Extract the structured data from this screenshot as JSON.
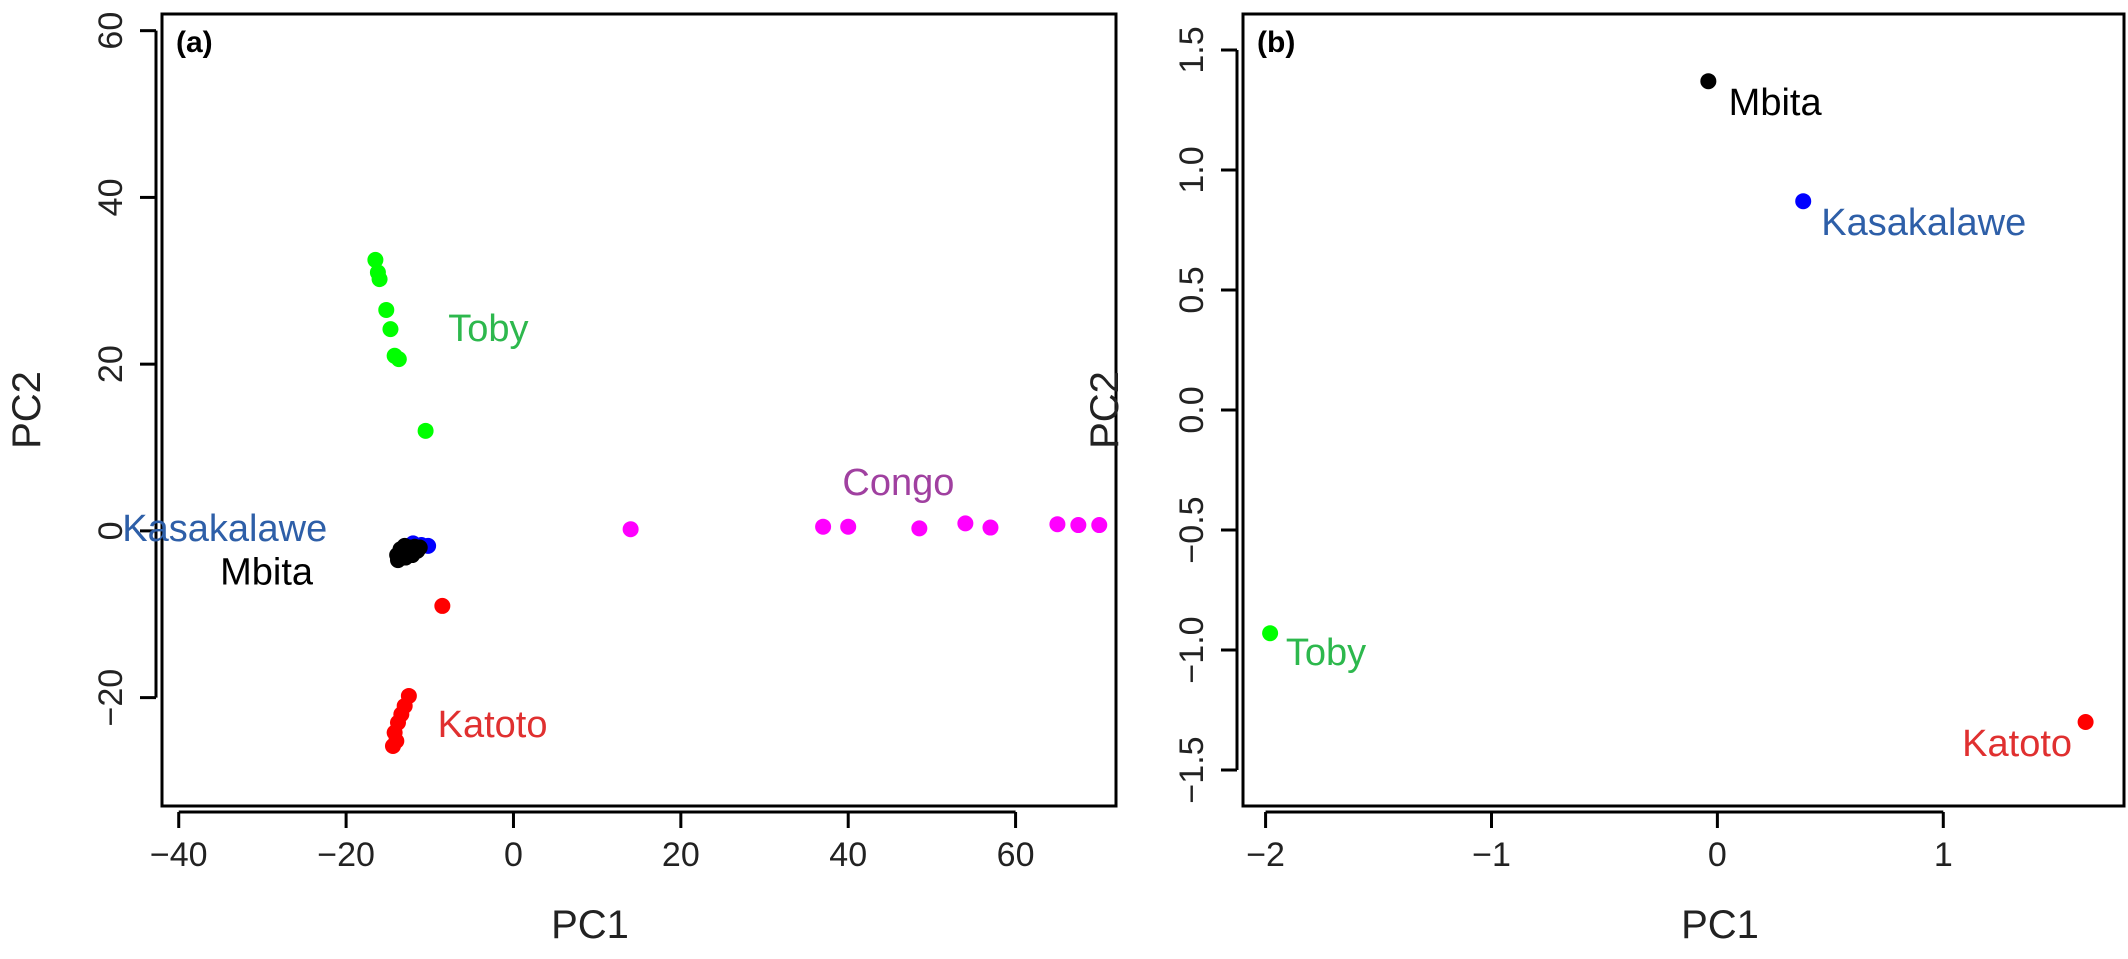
{
  "chart_data": [
    {
      "type": "scatter",
      "panel": "(a)",
      "xlabel": "PC1",
      "ylabel": "PC2",
      "xlim": [
        -42,
        72
      ],
      "ylim": [
        -33,
        62
      ],
      "xticks": [
        -40,
        -20,
        0,
        20,
        40,
        60
      ],
      "yticks": [
        -20,
        0,
        20,
        40,
        60
      ],
      "xtick_labels": [
        "−40",
        "−20",
        "0",
        "20",
        "40",
        "60"
      ],
      "ytick_labels": [
        "−20",
        "0",
        "20",
        "40",
        "60"
      ],
      "grid": false,
      "series": [
        {
          "name": "Toby",
          "color": "#00ff00",
          "label_color": "#2db84d",
          "label_at": [
            -3,
            24
          ],
          "label_anchor": "middle",
          "points": [
            [
              -16.5,
              32.5
            ],
            [
              -16.2,
              31
            ],
            [
              -16.0,
              30.2
            ],
            [
              -15.2,
              26.5
            ],
            [
              -14.7,
              24.2
            ],
            [
              -14.2,
              21
            ],
            [
              -13.7,
              20.6
            ],
            [
              -10.5,
              12
            ]
          ]
        },
        {
          "name": "Congo",
          "color": "#ff00ff",
          "label_color": "#a040a0",
          "label_at": [
            46,
            5.5
          ],
          "label_anchor": "middle",
          "points": [
            [
              14,
              0.2
            ],
            [
              37,
              0.5
            ],
            [
              40,
              0.5
            ],
            [
              48.5,
              0.3
            ],
            [
              54,
              0.9
            ],
            [
              57,
              0.4
            ],
            [
              65,
              0.8
            ],
            [
              67.5,
              0.7
            ],
            [
              70,
              0.7
            ]
          ]
        },
        {
          "name": "Kasakalawe",
          "color": "#0000ff",
          "label_color": "#2e5fa8",
          "label_at": [
            -34.5,
            0
          ],
          "label_anchor": "middle",
          "points": [
            [
              -12.0,
              -1.5
            ],
            [
              -11.0,
              -1.7
            ],
            [
              -10.2,
              -1.8
            ]
          ]
        },
        {
          "name": "Mbita",
          "color": "#000000",
          "label_color": "#000000",
          "label_at": [
            -29.5,
            -5.2
          ],
          "label_anchor": "middle",
          "points": [
            [
              -13.8,
              -3.5
            ],
            [
              -13.5,
              -2.2
            ],
            [
              -13.2,
              -2.8
            ],
            [
              -13.0,
              -1.8
            ],
            [
              -12.7,
              -2.5
            ],
            [
              -12.4,
              -2.0
            ],
            [
              -12.1,
              -2.9
            ],
            [
              -11.8,
              -1.9
            ],
            [
              -11.5,
              -2.4
            ],
            [
              -11.2,
              -2.0
            ],
            [
              -13.9,
              -2.9
            ],
            [
              -12.9,
              -3.2
            ]
          ]
        },
        {
          "name": "Katoto",
          "color": "#ff0000",
          "label_color": "#e03030",
          "label_at": [
            -2.5,
            -23.5
          ],
          "label_anchor": "middle",
          "points": [
            [
              -8.5,
              -9
            ],
            [
              -12.5,
              -19.8
            ],
            [
              -13.0,
              -21
            ],
            [
              -13.4,
              -22
            ],
            [
              -13.8,
              -23
            ],
            [
              -14.2,
              -24.2
            ],
            [
              -14.0,
              -25.2
            ],
            [
              -14.4,
              -25.8
            ]
          ]
        }
      ]
    },
    {
      "type": "scatter",
      "panel": "(b)",
      "xlabel": "PC1",
      "ylabel": "PC2",
      "xlim": [
        -2.1,
        1.8
      ],
      "ylim": [
        -1.65,
        1.65
      ],
      "xticks": [
        -2,
        -1,
        0,
        1
      ],
      "yticks": [
        -1.5,
        -1.0,
        -0.5,
        0.0,
        0.5,
        1.0,
        1.5
      ],
      "xtick_labels": [
        "−2",
        "−1",
        "0",
        "1"
      ],
      "ytick_labels": [
        "−1.5",
        "−1.0",
        "−0.5",
        "0.0",
        "0.5",
        "1.0",
        "1.5"
      ],
      "grid": false,
      "series": [
        {
          "name": "Mbita",
          "color": "#000000",
          "label_color": "#000000",
          "label_at": [
            0.05,
            1.27
          ],
          "label_anchor": "start",
          "points": [
            [
              -0.04,
              1.37
            ]
          ]
        },
        {
          "name": "Kasakalawe",
          "color": "#0000ff",
          "label_color": "#2e5fa8",
          "label_at": [
            0.46,
            0.77
          ],
          "label_anchor": "start",
          "points": [
            [
              0.38,
              0.87
            ]
          ]
        },
        {
          "name": "Toby",
          "color": "#00ff00",
          "label_color": "#2db84d",
          "label_at": [
            -1.91,
            -1.02
          ],
          "label_anchor": "start",
          "points": [
            [
              -1.98,
              -0.93
            ]
          ]
        },
        {
          "name": "Katoto",
          "color": "#ff0000",
          "label_color": "#e03030",
          "label_at": [
            1.57,
            -1.4
          ],
          "label_anchor": "end",
          "points": [
            [
              1.63,
              -1.3
            ]
          ]
        }
      ]
    }
  ]
}
